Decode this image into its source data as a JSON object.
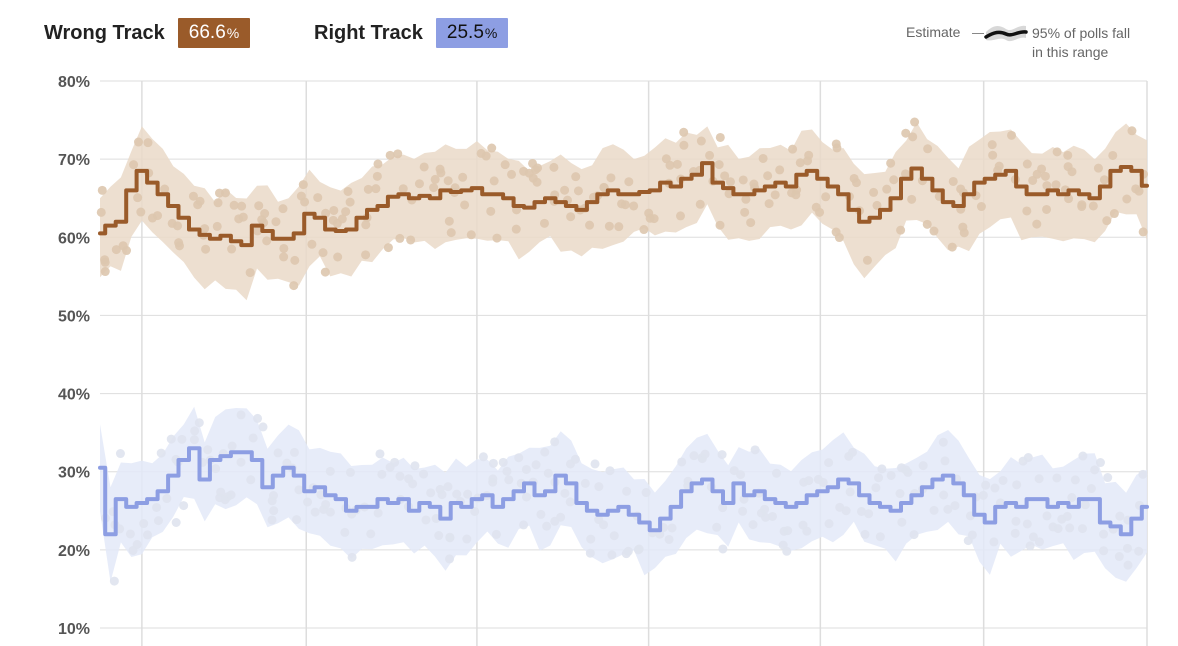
{
  "legend": {
    "wrong": {
      "label": "Wrong Track",
      "value": "66.6",
      "pct": "%",
      "color": "#9a5b2a"
    },
    "right": {
      "label": "Right Track",
      "value": "25.5",
      "pct": "%",
      "color": "#8d9ee3"
    }
  },
  "key": {
    "estimate_label": "Estimate",
    "range_label_line1": "95% of polls fall",
    "range_label_line2": "in this range"
  },
  "chart_data": {
    "type": "line",
    "title": "",
    "xlabel": "",
    "ylabel": "",
    "ylim": [
      10,
      80
    ],
    "yticks": [
      80,
      70,
      60,
      50,
      40,
      30,
      20,
      10
    ],
    "ytick_labels": [
      "80%",
      "70%",
      "60%",
      "50%",
      "40%",
      "30%",
      "20%",
      "10%"
    ],
    "x_range": [
      0,
      100
    ],
    "vertical_gridlines": [
      4,
      19.7,
      36,
      52.4,
      68.8,
      84.4,
      100
    ],
    "series": [
      {
        "name": "Wrong Track",
        "color": "#9a5b2a",
        "band_color": "#ead9c8",
        "point_color": "#ddc6ae",
        "x": [
          0,
          1,
          2,
          3,
          4,
          5,
          6,
          7,
          8,
          9,
          10,
          11,
          12,
          13,
          14,
          15,
          16,
          17,
          18,
          19,
          20,
          21,
          22,
          23,
          24,
          25,
          26,
          27,
          28,
          29,
          30,
          31,
          32,
          33,
          34,
          35,
          36,
          37,
          38,
          39,
          40,
          41,
          42,
          43,
          44,
          45,
          46,
          47,
          48,
          49,
          50,
          51,
          52,
          53,
          54,
          55,
          56,
          57,
          58,
          59,
          60,
          61,
          62,
          63,
          64,
          65,
          66,
          67,
          68,
          69,
          70,
          71,
          72,
          73,
          74,
          75,
          76,
          77,
          78,
          79,
          80,
          81,
          82,
          83,
          84,
          85,
          86,
          87,
          88,
          89,
          90,
          91,
          92,
          93,
          94,
          95,
          96,
          97,
          98,
          99,
          100
        ],
        "values": [
          60.5,
          61.5,
          62,
          66,
          68.5,
          67,
          65.5,
          64,
          62.5,
          61,
          60.3,
          59.8,
          60.2,
          59.5,
          59,
          61.5,
          60.8,
          59.8,
          59.8,
          60.5,
          63,
          62.5,
          61,
          60.8,
          61,
          62.5,
          63.5,
          64,
          65.2,
          65.5,
          65,
          65.3,
          65,
          66,
          65.8,
          66,
          66.3,
          65.5,
          65.5,
          65,
          64,
          63.8,
          64.5,
          65,
          64.5,
          64,
          63.5,
          64.5,
          65.5,
          66,
          65.5,
          65.5,
          65.8,
          66,
          67,
          66.5,
          67.5,
          68,
          69.5,
          67,
          66.3,
          65.5,
          65.5,
          66,
          66.5,
          67,
          66.5,
          68,
          68.5,
          67.5,
          66.5,
          65.5,
          63.5,
          62,
          62.5,
          63.5,
          65,
          67.5,
          68.8,
          67.5,
          66,
          64.5,
          64,
          65.5,
          67,
          67.5,
          68,
          68.5,
          66.5,
          65.5,
          65.5,
          66,
          65.5,
          66,
          65.5,
          65,
          66.5,
          68.5,
          69,
          68.5,
          66.6
        ],
        "band_width": 4.5
      },
      {
        "name": "Right Track",
        "color": "#8d9ee3",
        "band_color": "#e3e9f8",
        "point_color": "#dfe3ee",
        "x": [
          0,
          1,
          2,
          3,
          4,
          5,
          6,
          7,
          8,
          9,
          10,
          11,
          12,
          13,
          14,
          15,
          16,
          17,
          18,
          19,
          20,
          21,
          22,
          23,
          24,
          25,
          26,
          27,
          28,
          29,
          30,
          31,
          32,
          33,
          34,
          35,
          36,
          37,
          38,
          39,
          40,
          41,
          42,
          43,
          44,
          45,
          46,
          47,
          48,
          49,
          50,
          51,
          52,
          53,
          54,
          55,
          56,
          57,
          58,
          59,
          60,
          61,
          62,
          63,
          64,
          65,
          66,
          67,
          68,
          69,
          70,
          71,
          72,
          73,
          74,
          75,
          76,
          77,
          78,
          79,
          80,
          81,
          82,
          83,
          84,
          85,
          86,
          87,
          88,
          89,
          90,
          91,
          92,
          93,
          94,
          95,
          96,
          97,
          98,
          99,
          100
        ],
        "values": [
          30.5,
          22,
          26.5,
          25.5,
          26,
          26.5,
          27.5,
          29.5,
          31.5,
          33,
          29,
          31.5,
          32,
          32.5,
          32.5,
          31.5,
          28,
          29.5,
          30.5,
          29.5,
          27.5,
          28,
          27,
          26.5,
          25,
          25.5,
          25.5,
          26.5,
          26,
          26.5,
          25,
          26,
          25.5,
          24,
          26,
          25.5,
          26.5,
          27,
          25.5,
          26.5,
          27.5,
          28.5,
          27,
          27.5,
          29.5,
          28.5,
          26,
          25,
          24.5,
          25,
          25.5,
          24.5,
          23.5,
          22.5,
          24,
          25.5,
          27.5,
          28.5,
          29,
          27.5,
          26,
          28.5,
          27,
          27.5,
          26.5,
          26,
          25.5,
          26,
          27,
          27.5,
          28,
          29,
          28.5,
          27,
          26,
          25.5,
          25,
          26,
          27,
          28,
          29,
          29.5,
          28.5,
          27,
          24.5,
          23.5,
          25.5,
          26,
          25.5,
          26.5,
          26.5,
          25.5,
          26,
          25.5,
          26.5,
          26.5,
          23.5,
          23,
          22,
          24,
          25.5
        ],
        "band_width": 4.5
      }
    ]
  }
}
